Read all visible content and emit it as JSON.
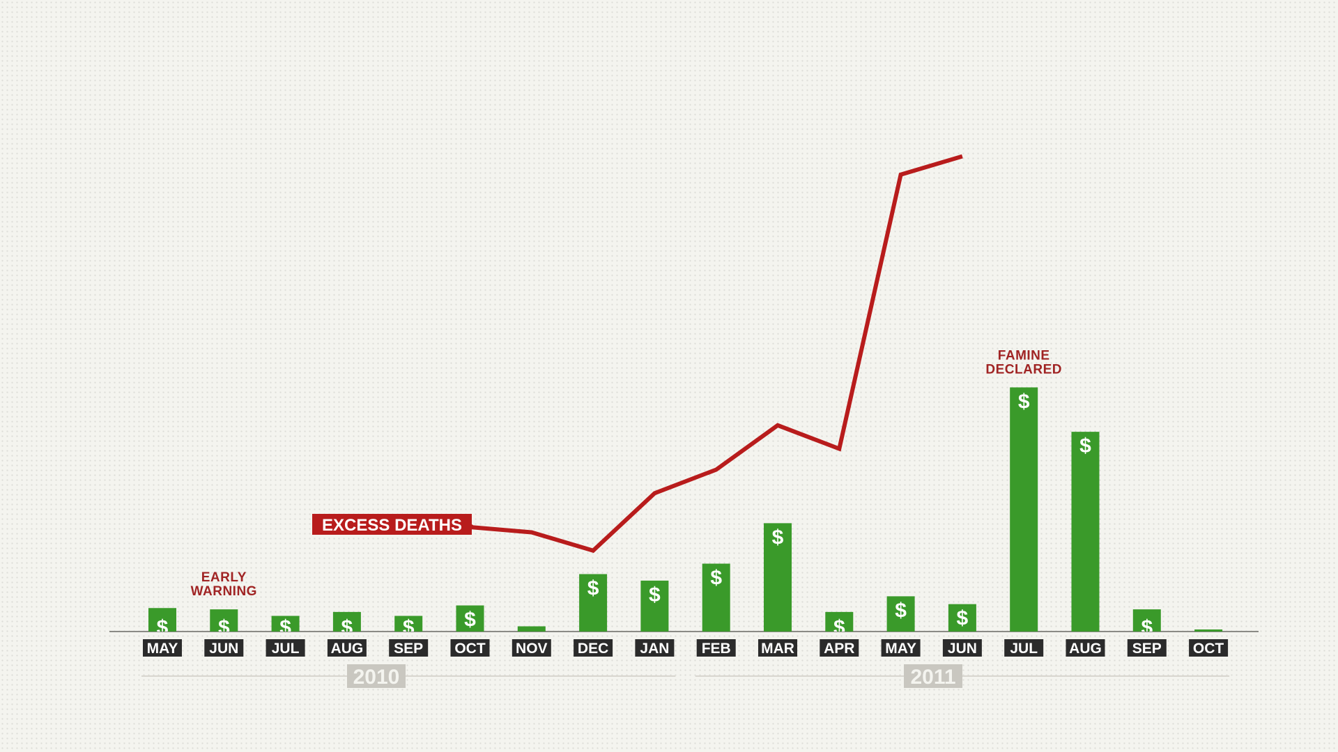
{
  "chart_data": {
    "type": "bar",
    "categories": [
      "MAY",
      "JUN",
      "JUL",
      "AUG",
      "SEP",
      "OCT",
      "NOV",
      "DEC",
      "JAN",
      "FEB",
      "MAR",
      "APR",
      "MAY",
      "JUN",
      "JUL",
      "AUG",
      "SEP",
      "OCT"
    ],
    "years": [
      {
        "label": "2010",
        "from_index": 0,
        "to_index": 8
      },
      {
        "label": "2011",
        "from_index": 9,
        "to_index": 17
      }
    ],
    "series": [
      {
        "kind": "bar",
        "symbol": "$",
        "values": [
          9,
          8.5,
          6,
          7.5,
          6,
          10,
          2,
          22,
          19.5,
          26,
          41.5,
          7.5,
          13.5,
          10.5,
          93.5,
          76.5,
          8.5,
          0.8
        ]
      },
      {
        "kind": "line",
        "name": "EXCESS DEATHS",
        "values": [
          null,
          null,
          null,
          null,
          null,
          40,
          38,
          31,
          53,
          62,
          79,
          70,
          175,
          182,
          null,
          null,
          null,
          null
        ]
      }
    ],
    "ylim": [
      0,
      200
    ],
    "grid": false,
    "legend": "none",
    "annotations": [
      {
        "index": 1,
        "lines": [
          "EARLY",
          "WARNING"
        ]
      },
      {
        "index": 14,
        "lines": [
          "FAMINE",
          "DECLARED"
        ]
      }
    ],
    "colors": {
      "bar": "#3a9a2a",
      "line": "#b81c1c",
      "annotation": "#a02424",
      "month_label_bg": "#2b2b2b",
      "year_label_bg": "#c9c7c0",
      "axis": "#8a8a85"
    }
  }
}
